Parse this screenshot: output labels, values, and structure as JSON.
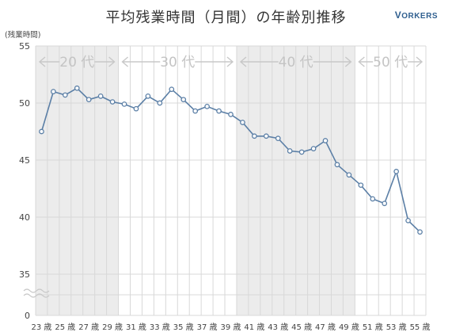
{
  "title": "平均残業時間（月間）の年齢別推移",
  "brand": {
    "first": "V",
    "rest": "ORKERS"
  },
  "colors": {
    "line": "#5b7fa6",
    "band": "#ececec",
    "band_text": "#c4c4c4",
    "grid": "#d8d8d8"
  },
  "chart_data": {
    "type": "line",
    "y_unit_label": "(残業時間)",
    "ylim": [
      35,
      55
    ],
    "y_ticks": [
      "55",
      "50",
      "45",
      "40",
      "35",
      "0"
    ],
    "axis_break": true,
    "grid": true,
    "x_tick_labels": [
      "23 歳",
      "25 歳",
      "27 歳",
      "29 歳",
      "31 歳",
      "33 歳",
      "35 歳",
      "37 歳",
      "39 歳",
      "41 歳",
      "43 歳",
      "45 歳",
      "47 歳",
      "49 歳",
      "51 歳",
      "53 歳",
      "55 歳"
    ],
    "age_bands": [
      {
        "label": "20 代",
        "from": 23,
        "to": 29
      },
      {
        "label": "30 代",
        "from": 30,
        "to": 39
      },
      {
        "label": "40 代",
        "from": 40,
        "to": 49
      },
      {
        "label": "50 代",
        "from": 50,
        "to": 55
      }
    ],
    "x": [
      23,
      24,
      25,
      26,
      27,
      28,
      29,
      30,
      31,
      32,
      33,
      34,
      35,
      36,
      37,
      38,
      39,
      40,
      41,
      42,
      43,
      44,
      45,
      46,
      47,
      48,
      49,
      50,
      51,
      52,
      53,
      54,
      55
    ],
    "y": [
      47.5,
      51.0,
      50.7,
      51.3,
      50.3,
      50.6,
      50.1,
      49.9,
      49.5,
      50.6,
      50.0,
      51.2,
      50.3,
      49.3,
      49.7,
      49.3,
      49.0,
      48.3,
      47.1,
      47.1,
      46.9,
      45.8,
      45.7,
      46.0,
      46.7,
      44.6,
      43.7,
      42.8,
      41.6,
      41.2,
      44.0,
      39.7,
      38.7
    ]
  }
}
